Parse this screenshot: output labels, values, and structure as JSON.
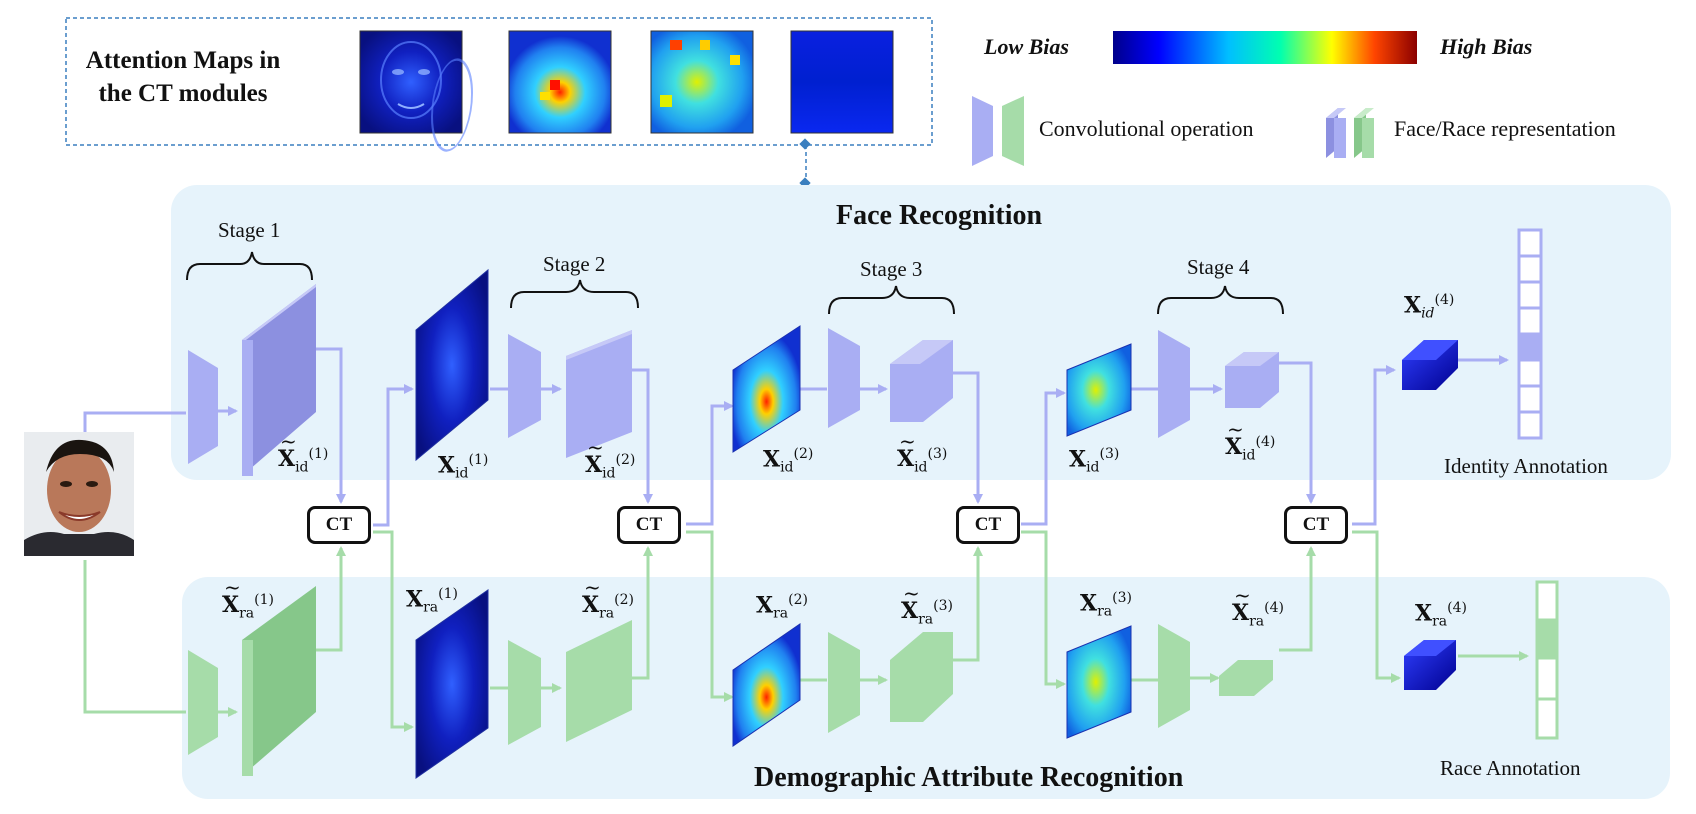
{
  "attention_panel": {
    "title_line1": "Attention Maps in",
    "title_line2": "the CT modules"
  },
  "bias_scale": {
    "low_label": "Low Bias",
    "high_label": "High Bias",
    "gradient_colors": [
      "#00008b",
      "#0000ff",
      "#00bfff",
      "#00ffb0",
      "#ffff00",
      "#ff4500",
      "#8b0000"
    ]
  },
  "legend": {
    "conv_label": "Convolutional operation",
    "rep_label": "Face/Race representation",
    "purple": "#a9aef3",
    "green": "#a6dca9"
  },
  "face_panel": {
    "title": "Face Recognition",
    "bg": "#e6f3fb"
  },
  "demo_panel": {
    "title": "Demographic Attribute Recognition",
    "bg": "#e6f3fb"
  },
  "stages": [
    "Stage 1",
    "Stage 2",
    "Stage 3",
    "Stage 4"
  ],
  "ct_label": "CT",
  "vars": {
    "sym": "X",
    "id": "id",
    "ra": "ra",
    "id_italic": "id",
    "sup": [
      "(1)",
      "(2)",
      "(3)",
      "(4)"
    ]
  },
  "annotations": {
    "identity": "Identity Annotation",
    "race": "Race Annotation"
  },
  "icons": {
    "face": "face-photo-icon",
    "conv": "conv-trapezoid-icon",
    "rep": "feature-block-icon"
  }
}
